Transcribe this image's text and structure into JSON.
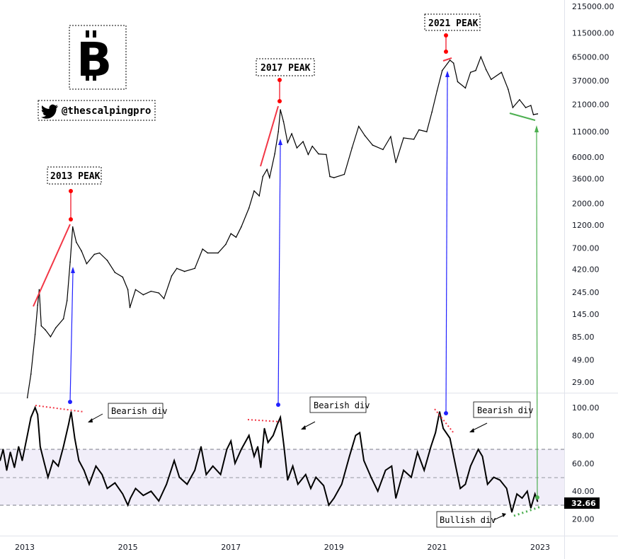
{
  "chart_data": [
    {
      "type": "line",
      "pane": "price",
      "yscale": "log",
      "x_unit": "year",
      "yticks": [
        "215000.00",
        "115000.00",
        "65000.00",
        "37000.00",
        "21000.00",
        "11000.00",
        "6000.00",
        "3600.00",
        "2000.00",
        "1200.00",
        "700.00",
        "420.00",
        "245.00",
        "145.00",
        "85.00",
        "49.00",
        "29.00"
      ],
      "ytick_values": [
        215000,
        115000,
        65000,
        37000,
        21000,
        11000,
        6000,
        3600,
        2000,
        1200,
        700,
        420,
        245,
        145,
        85,
        49,
        29
      ],
      "points": [
        [
          2013.05,
          20
        ],
        [
          2013.12,
          35
        ],
        [
          2013.2,
          90
        ],
        [
          2013.25,
          180
        ],
        [
          2013.28,
          260
        ],
        [
          2013.32,
          110
        ],
        [
          2013.4,
          100
        ],
        [
          2013.5,
          85
        ],
        [
          2013.6,
          105
        ],
        [
          2013.75,
          130
        ],
        [
          2013.82,
          200
        ],
        [
          2013.88,
          500
        ],
        [
          2013.93,
          1150
        ],
        [
          2014.0,
          800
        ],
        [
          2014.1,
          650
        ],
        [
          2014.2,
          480
        ],
        [
          2014.35,
          600
        ],
        [
          2014.45,
          620
        ],
        [
          2014.6,
          520
        ],
        [
          2014.75,
          390
        ],
        [
          2014.9,
          350
        ],
        [
          2015.0,
          260
        ],
        [
          2015.04,
          170
        ],
        [
          2015.15,
          260
        ],
        [
          2015.3,
          230
        ],
        [
          2015.45,
          250
        ],
        [
          2015.6,
          240
        ],
        [
          2015.7,
          210
        ],
        [
          2015.85,
          360
        ],
        [
          2015.95,
          430
        ],
        [
          2016.1,
          400
        ],
        [
          2016.3,
          430
        ],
        [
          2016.45,
          680
        ],
        [
          2016.55,
          620
        ],
        [
          2016.75,
          620
        ],
        [
          2016.9,
          760
        ],
        [
          2017.0,
          980
        ],
        [
          2017.1,
          900
        ],
        [
          2017.2,
          1150
        ],
        [
          2017.35,
          1800
        ],
        [
          2017.45,
          2700
        ],
        [
          2017.55,
          2400
        ],
        [
          2017.62,
          3800
        ],
        [
          2017.7,
          4500
        ],
        [
          2017.75,
          3700
        ],
        [
          2017.85,
          6500
        ],
        [
          2017.92,
          11000
        ],
        [
          2017.96,
          18500
        ],
        [
          2018.02,
          14000
        ],
        [
          2018.1,
          8500
        ],
        [
          2018.18,
          10500
        ],
        [
          2018.28,
          7500
        ],
        [
          2018.4,
          8700
        ],
        [
          2018.5,
          6400
        ],
        [
          2018.58,
          7800
        ],
        [
          2018.7,
          6500
        ],
        [
          2018.85,
          6400
        ],
        [
          2018.92,
          3800
        ],
        [
          2019.0,
          3700
        ],
        [
          2019.2,
          4000
        ],
        [
          2019.35,
          7500
        ],
        [
          2019.48,
          12500
        ],
        [
          2019.6,
          10000
        ],
        [
          2019.75,
          8000
        ],
        [
          2019.95,
          7200
        ],
        [
          2020.1,
          9800
        ],
        [
          2020.2,
          5300
        ],
        [
          2020.35,
          9500
        ],
        [
          2020.55,
          9200
        ],
        [
          2020.65,
          11500
        ],
        [
          2020.8,
          11000
        ],
        [
          2020.9,
          17500
        ],
        [
          2021.0,
          29000
        ],
        [
          2021.1,
          47000
        ],
        [
          2021.25,
          60000
        ],
        [
          2021.32,
          56000
        ],
        [
          2021.4,
          36000
        ],
        [
          2021.55,
          31000
        ],
        [
          2021.65,
          45000
        ],
        [
          2021.75,
          47000
        ],
        [
          2021.85,
          65000
        ],
        [
          2021.95,
          48000
        ],
        [
          2022.05,
          38000
        ],
        [
          2022.25,
          45000
        ],
        [
          2022.38,
          30000
        ],
        [
          2022.47,
          19500
        ],
        [
          2022.6,
          23500
        ],
        [
          2022.72,
          19500
        ],
        [
          2022.82,
          20500
        ],
        [
          2022.87,
          16500
        ],
        [
          2022.95,
          16800
        ]
      ]
    },
    {
      "type": "line",
      "pane": "RSI",
      "x_unit": "year",
      "ylim": [
        10,
        110
      ],
      "yticks": [
        "100.00",
        "80.00",
        "60.00",
        "40.00",
        "20.00"
      ],
      "ytick_values": [
        100,
        80,
        60,
        40,
        20
      ],
      "bands": [
        70,
        50,
        30
      ],
      "last_value": "32.66",
      "points": [
        [
          2012.52,
          62
        ],
        [
          2012.58,
          70
        ],
        [
          2012.65,
          55
        ],
        [
          2012.72,
          68
        ],
        [
          2012.8,
          57
        ],
        [
          2012.88,
          72
        ],
        [
          2012.95,
          62
        ],
        [
          2013.05,
          80
        ],
        [
          2013.12,
          93
        ],
        [
          2013.2,
          100
        ],
        [
          2013.25,
          95
        ],
        [
          2013.3,
          72
        ],
        [
          2013.38,
          60
        ],
        [
          2013.45,
          50
        ],
        [
          2013.55,
          62
        ],
        [
          2013.65,
          58
        ],
        [
          2013.75,
          72
        ],
        [
          2013.85,
          88
        ],
        [
          2013.9,
          97
        ],
        [
          2013.97,
          78
        ],
        [
          2014.05,
          62
        ],
        [
          2014.15,
          55
        ],
        [
          2014.25,
          45
        ],
        [
          2014.38,
          58
        ],
        [
          2014.5,
          52
        ],
        [
          2014.6,
          42
        ],
        [
          2014.75,
          46
        ],
        [
          2014.9,
          38
        ],
        [
          2015.0,
          30
        ],
        [
          2015.05,
          35
        ],
        [
          2015.15,
          42
        ],
        [
          2015.3,
          37
        ],
        [
          2015.45,
          40
        ],
        [
          2015.6,
          33
        ],
        [
          2015.75,
          45
        ],
        [
          2015.9,
          62
        ],
        [
          2016.0,
          50
        ],
        [
          2016.15,
          45
        ],
        [
          2016.3,
          55
        ],
        [
          2016.42,
          72
        ],
        [
          2016.52,
          52
        ],
        [
          2016.65,
          58
        ],
        [
          2016.8,
          52
        ],
        [
          2016.92,
          70
        ],
        [
          2017.0,
          76
        ],
        [
          2017.08,
          60
        ],
        [
          2017.2,
          70
        ],
        [
          2017.35,
          80
        ],
        [
          2017.45,
          65
        ],
        [
          2017.52,
          72
        ],
        [
          2017.58,
          57
        ],
        [
          2017.65,
          85
        ],
        [
          2017.72,
          75
        ],
        [
          2017.82,
          80
        ],
        [
          2017.9,
          88
        ],
        [
          2017.96,
          93
        ],
        [
          2018.03,
          72
        ],
        [
          2018.1,
          48
        ],
        [
          2018.2,
          58
        ],
        [
          2018.3,
          45
        ],
        [
          2018.45,
          52
        ],
        [
          2018.55,
          42
        ],
        [
          2018.65,
          50
        ],
        [
          2018.8,
          44
        ],
        [
          2018.9,
          30
        ],
        [
          2019.0,
          35
        ],
        [
          2019.15,
          45
        ],
        [
          2019.3,
          65
        ],
        [
          2019.42,
          80
        ],
        [
          2019.5,
          82
        ],
        [
          2019.58,
          62
        ],
        [
          2019.72,
          50
        ],
        [
          2019.85,
          40
        ],
        [
          2020.0,
          55
        ],
        [
          2020.12,
          58
        ],
        [
          2020.2,
          35
        ],
        [
          2020.35,
          55
        ],
        [
          2020.5,
          50
        ],
        [
          2020.62,
          68
        ],
        [
          2020.75,
          55
        ],
        [
          2020.88,
          72
        ],
        [
          2020.97,
          82
        ],
        [
          2021.05,
          97
        ],
        [
          2021.12,
          85
        ],
        [
          2021.25,
          78
        ],
        [
          2021.35,
          60
        ],
        [
          2021.45,
          42
        ],
        [
          2021.55,
          45
        ],
        [
          2021.65,
          58
        ],
        [
          2021.8,
          70
        ],
        [
          2021.88,
          65
        ],
        [
          2021.98,
          45
        ],
        [
          2022.1,
          50
        ],
        [
          2022.22,
          48
        ],
        [
          2022.35,
          42
        ],
        [
          2022.45,
          25
        ],
        [
          2022.55,
          38
        ],
        [
          2022.65,
          35
        ],
        [
          2022.75,
          40
        ],
        [
          2022.82,
          28
        ],
        [
          2022.9,
          38
        ],
        [
          2022.95,
          32.66
        ]
      ]
    }
  ],
  "xticks": [
    "2013",
    "2015",
    "2017",
    "2019",
    "2021",
    "2023"
  ],
  "xtick_values": [
    2013,
    2015,
    2017,
    2019,
    2021,
    2023
  ],
  "annotations": {
    "peak_2013": "2013 PEAK",
    "peak_2017": "2017 PEAK",
    "peak_2021": "2021 PEAK",
    "bearish_1": "Bearish div",
    "bearish_2": "Bearish div",
    "bearish_3": "Bearish div",
    "bullish": "Bullish div",
    "twitter_handle": "@thescalpingpro",
    "logo": "B"
  },
  "colors": {
    "price": "#000000",
    "rsi": "#000000",
    "peak_line": "#f23645",
    "blue_arrow": "#2121ff",
    "green": "#4caf50",
    "rsi_band": "#f1eef9"
  }
}
